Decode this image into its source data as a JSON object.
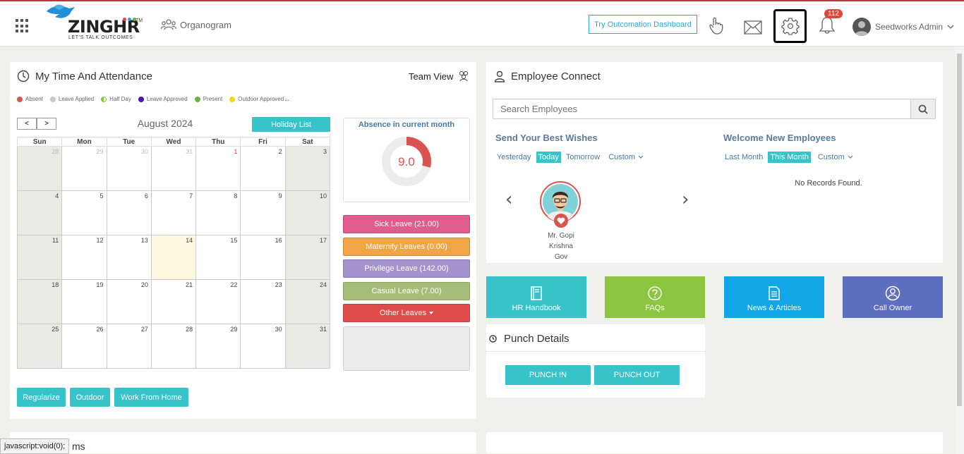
{
  "header": {
    "logo_text": "ZINGHR",
    "logo_tm": "TM",
    "logo_tagline": "LET'S TALK OUTCOMES",
    "organogram_label": "Organogram",
    "try_dashboard_label": "Try Outcomation Dashboard",
    "notification_count": "112",
    "user_name": "Seedworks Admin"
  },
  "attendance": {
    "title": "My Time And Attendance",
    "team_view_label": "Team View",
    "legend": [
      {
        "label": "Absent",
        "color": "#d9534f"
      },
      {
        "label": "Leave Applied",
        "color": "#c8c8c8"
      },
      {
        "label": "Half Day",
        "color": "#8cc63f"
      },
      {
        "label": "Leave Approved",
        "color": "#4b0fbf"
      },
      {
        "label": "Present",
        "color": "#6ab04c"
      },
      {
        "label": "Outdoor Approved",
        "color": "#f5d90a"
      }
    ],
    "legend_more": "...",
    "prev_label": "<",
    "next_label": ">",
    "month_label": "August 2024",
    "holiday_list_label": "Holiday List",
    "weekdays": [
      "Sun",
      "Mon",
      "Tue",
      "Wed",
      "Thu",
      "Fri",
      "Sat"
    ],
    "weeks": [
      [
        "28",
        "29",
        "30",
        "31",
        "1",
        "2",
        "3"
      ],
      [
        "4",
        "5",
        "6",
        "7",
        "8",
        "9",
        "10"
      ],
      [
        "11",
        "12",
        "13",
        "14",
        "15",
        "16",
        "17"
      ],
      [
        "18",
        "19",
        "20",
        "21",
        "22",
        "23",
        "24"
      ],
      [
        "25",
        "26",
        "27",
        "28",
        "29",
        "30",
        "31"
      ]
    ],
    "absence_title": "Absence in current month",
    "absence_value": "9.0",
    "absence_fraction": 0.29,
    "leave_buttons": [
      {
        "label": "Sick Leave (21.00)",
        "color": "#e05c8e"
      },
      {
        "label": "Maternity Leaves (0.00)",
        "color": "#f0a646"
      },
      {
        "label": "Privilege Leave (142.00)",
        "color": "#a592cc"
      },
      {
        "label": "Casual Leave (7.00)",
        "color": "#a6bd79"
      },
      {
        "label": "Other Leaves",
        "color": "#e04c4c"
      }
    ],
    "actions": [
      "Regularize",
      "Outdoor",
      "Work From Home"
    ]
  },
  "employee_connect": {
    "title": "Employee Connect",
    "search_placeholder": "Search Employees",
    "wishes_title": "Send Your Best Wishes",
    "wishes_tabs": [
      "Yesterday",
      "Today",
      "Tomorrow",
      "Custom"
    ],
    "welcome_title": "Welcome New Employees",
    "welcome_tabs": [
      "Last Month",
      "This Month",
      "Custom"
    ],
    "person_name_lines": [
      "Mr. Gopi",
      "Krishna",
      "Gov"
    ],
    "no_records": "No Records Found."
  },
  "tiles": [
    {
      "label": "HR Handbook",
      "color": "#36c4c9",
      "icon": "book-icon"
    },
    {
      "label": "FAQs",
      "color": "#8cc63f",
      "icon": "question-icon"
    },
    {
      "label": "News & Articles",
      "color": "#12a6e8",
      "icon": "document-icon"
    },
    {
      "label": "Call Owner",
      "color": "#5f6fc0",
      "icon": "person-icon"
    }
  ],
  "punch": {
    "title": "Punch Details",
    "in_label": "PUNCH IN",
    "out_label": "PUNCH OUT"
  },
  "bottom_card_fragment": "ms",
  "status_bar_text": "javascript:void(0);"
}
